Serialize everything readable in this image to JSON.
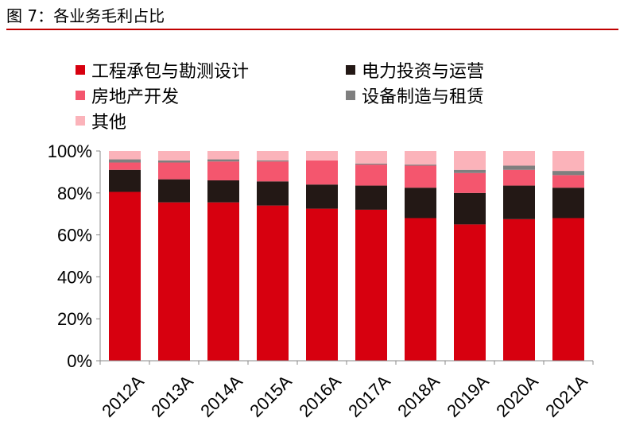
{
  "figure": {
    "title": "图 7：各业务毛利占比"
  },
  "colors": {
    "title_rule": "#c00000",
    "axis": "#888888"
  },
  "chart_data": {
    "type": "bar",
    "stacked": true,
    "categories": [
      "2012A",
      "2013A",
      "2014A",
      "2015A",
      "2016A",
      "2017A",
      "2018A",
      "2019A",
      "2020A",
      "2021A"
    ],
    "series": [
      {
        "name": "工程承包与勘测设计",
        "color": "#d7000f",
        "values": [
          80.5,
          75.5,
          75.5,
          74,
          72.5,
          72,
          68,
          65,
          67.5,
          68
        ]
      },
      {
        "name": "电力投资与运营",
        "color": "#231815",
        "values": [
          10.5,
          11,
          10.5,
          11.5,
          11.5,
          11.5,
          14.5,
          15,
          16,
          14.5
        ]
      },
      {
        "name": "房地产开发",
        "color": "#f4566e",
        "values": [
          3.5,
          8,
          9,
          9.5,
          11.5,
          10,
          10.5,
          9.5,
          7.5,
          6
        ]
      },
      {
        "name": "设备制造与租赁",
        "color": "#7f7f7f",
        "values": [
          1.5,
          1,
          1,
          0.5,
          0,
          0.5,
          0.5,
          1.5,
          2,
          2
        ]
      },
      {
        "name": "其他",
        "color": "#fbb3ba",
        "values": [
          4,
          4.5,
          4,
          4.5,
          4.5,
          6,
          6.5,
          9,
          7,
          9.5
        ]
      }
    ],
    "ylim": [
      0,
      100
    ],
    "yticks": [
      "0%",
      "20%",
      "40%",
      "60%",
      "80%",
      "100%"
    ],
    "legend_position": "top",
    "grid": false
  }
}
